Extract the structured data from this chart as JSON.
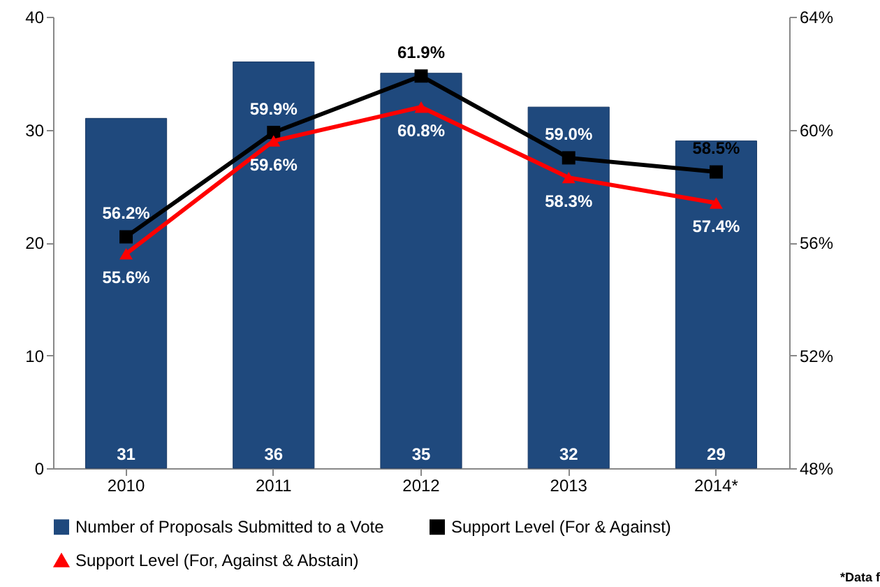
{
  "chart_data": {
    "type": "bar",
    "categories": [
      "2010",
      "2011",
      "2012",
      "2013",
      "2014*"
    ],
    "series": [
      {
        "name": "Number of Proposals Submitted to a Vote",
        "type": "bar",
        "color": "#1f497d",
        "values": [
          31,
          36,
          35,
          32,
          29
        ],
        "value_labels": [
          "31",
          "36",
          "35",
          "32",
          "29"
        ]
      },
      {
        "name": "Support Level (For & Against)",
        "type": "line",
        "axis": "y2",
        "color": "#000000",
        "marker": "square",
        "values": [
          56.2,
          59.9,
          61.9,
          59.0,
          58.5
        ],
        "value_labels": [
          "56.2%",
          "59.9%",
          "61.9%",
          "59.0%",
          "58.5%"
        ]
      },
      {
        "name": "Support Level (For, Against & Abstain)",
        "type": "line",
        "axis": "y2",
        "color": "#ff0000",
        "marker": "triangle",
        "values": [
          55.6,
          59.6,
          60.8,
          58.3,
          57.4
        ],
        "value_labels": [
          "55.6%",
          "59.6%",
          "60.8%",
          "58.3%",
          "57.4%"
        ]
      }
    ],
    "ylim": [
      0,
      40
    ],
    "yticks": [
      0,
      10,
      20,
      30,
      40
    ],
    "y2lim": [
      48,
      64
    ],
    "y2ticks": [
      {
        "value": 48,
        "label": "48%"
      },
      {
        "value": 52,
        "label": "52%"
      },
      {
        "value": 56,
        "label": "56%"
      },
      {
        "value": 60,
        "label": "60%"
      },
      {
        "value": 64,
        "label": "64%"
      }
    ],
    "grid": false,
    "legend": "bottom",
    "line_style": "solid",
    "annotations": [
      "*Data f"
    ]
  }
}
